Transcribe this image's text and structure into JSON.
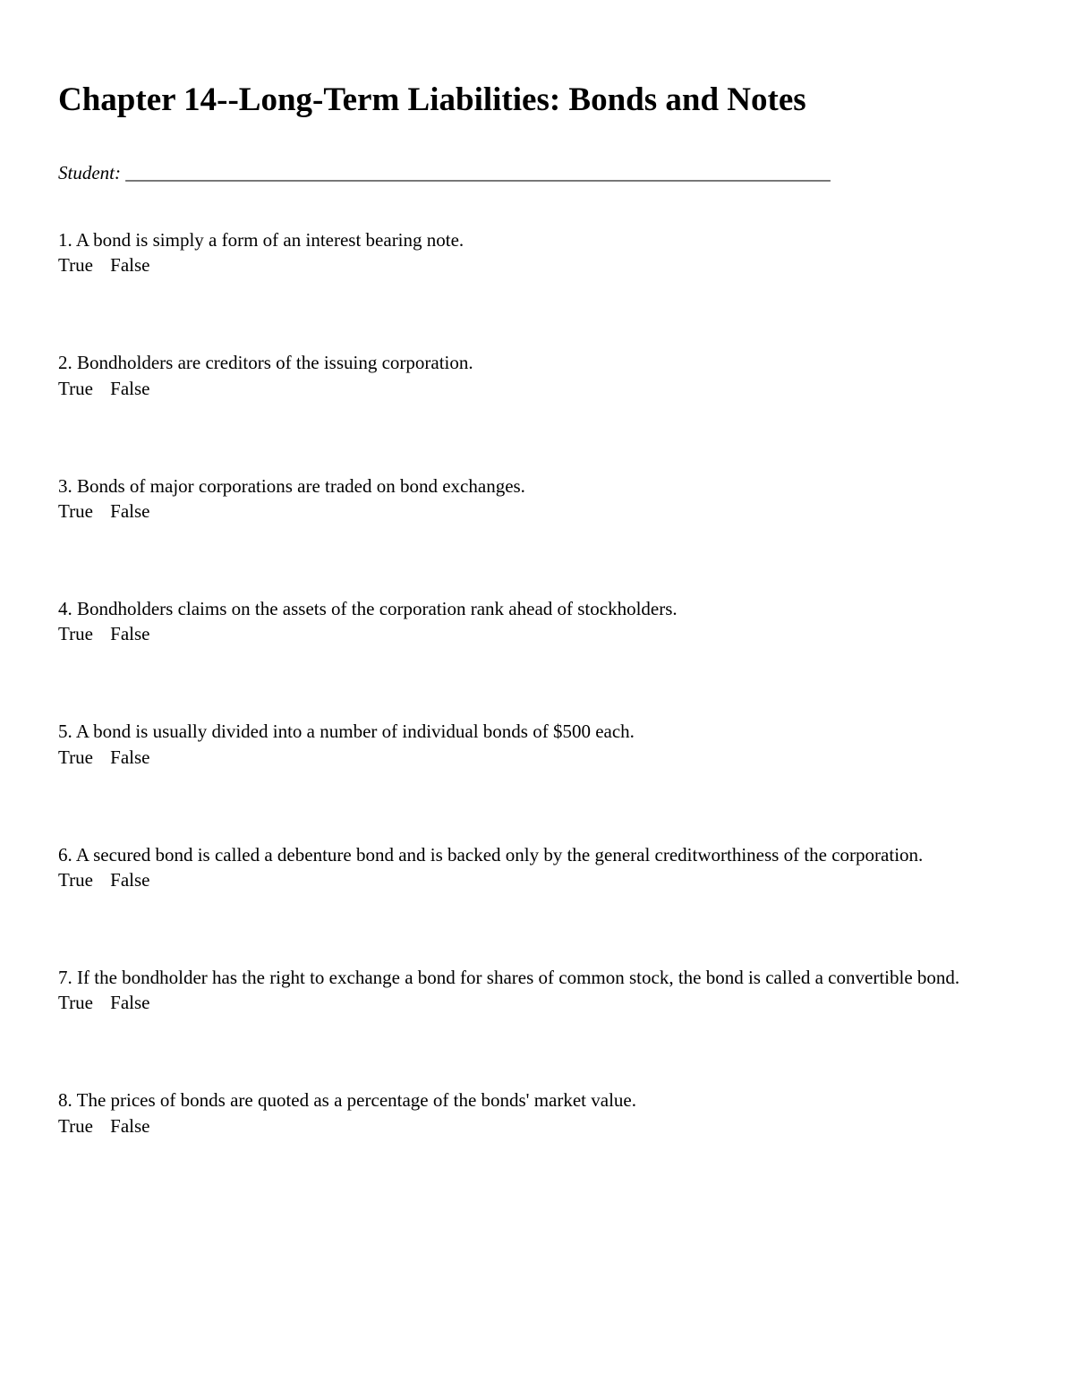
{
  "title": "Chapter 14--Long-Term Liabilities: Bonds and Notes",
  "student_label": "Student:",
  "student_underline": "___________________________________________________________________________",
  "answer_true": "True",
  "answer_false": "False",
  "questions": {
    "q1": "1. A bond is simply a form of an interest bearing note.",
    "q2": "2. Bondholders are creditors of the issuing corporation.",
    "q3": "3. Bonds of major corporations are traded on bond exchanges.",
    "q4": "4. Bondholders claims on the assets of the corporation rank ahead of stockholders.",
    "q5": "5. A bond is usually divided into a number of individual bonds of $500 each.",
    "q6": "6. A secured bond is called a debenture bond and is backed only by the general creditworthiness of the corporation.",
    "q7": "7. If the bondholder has the right to exchange a bond for shares of common stock, the bond is called a convertible bond.",
    "q8": "8. The prices of bonds are quoted as a percentage of the bonds' market value."
  }
}
